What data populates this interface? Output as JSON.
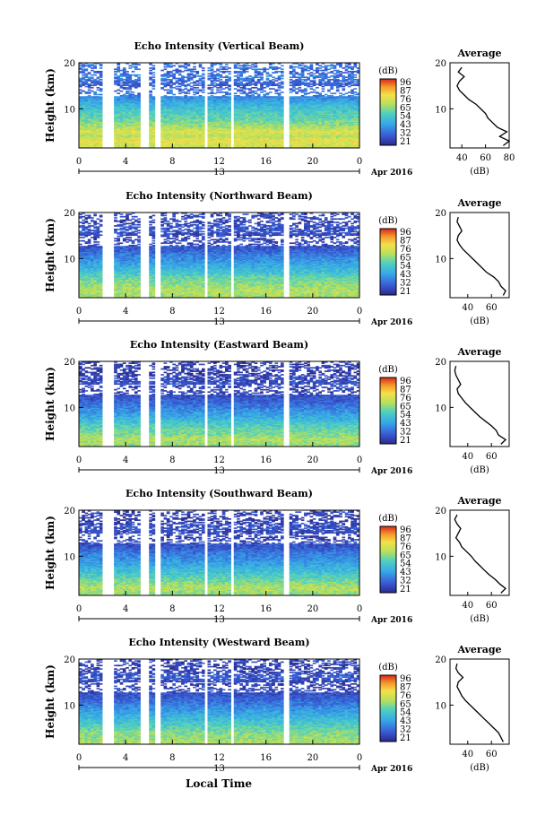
{
  "figure": {
    "xlabel": "Local Time",
    "date_label": "Apr 2016",
    "day_marker": "13",
    "colorbar_unit": "(dB)",
    "colorbar_ticks": [
      "96",
      "87",
      "76",
      "65",
      "54",
      "43",
      "32",
      "21"
    ],
    "avg_title": "Average",
    "avg_xlabel": "(dB)"
  },
  "chart_data": [
    {
      "type": "heatmap",
      "title": "Echo Intensity (Vertical Beam)",
      "ylabel": "Height (km)",
      "x_ticks": [
        "0",
        "4",
        "8",
        "12",
        "16",
        "20",
        "0"
      ],
      "y_ticks": [
        "10",
        "20"
      ],
      "xlim": [
        0,
        24
      ],
      "ylim": [
        1.5,
        20
      ],
      "colorbar_range_db": [
        21,
        96
      ],
      "data_gaps_hours": [
        [
          2.0,
          3.0
        ],
        [
          5.3,
          5.9
        ],
        [
          6.4,
          6.9
        ],
        [
          10.8,
          11.1
        ],
        [
          13.0,
          13.3
        ],
        [
          16.4,
          16.6
        ],
        [
          17.4,
          17.9
        ]
      ],
      "profile": {
        "xlabel": "(dB)",
        "x_ticks": [
          "40",
          "60",
          "80"
        ],
        "xlim": [
          30,
          80
        ],
        "y_ticks": [
          "10",
          "20"
        ],
        "ylim": [
          1.5,
          20
        ],
        "heights_km": [
          2,
          3,
          4,
          5,
          6,
          7,
          8,
          9,
          10,
          11,
          12,
          13,
          14,
          15,
          16,
          17,
          18,
          19
        ],
        "values_db": [
          75,
          80,
          72,
          78,
          70,
          66,
          62,
          60,
          56,
          52,
          46,
          42,
          38,
          36,
          38,
          42,
          37,
          40
        ]
      }
    },
    {
      "type": "heatmap",
      "title": "Echo Intensity (Northward Beam)",
      "ylabel": "Height (km)",
      "x_ticks": [
        "0",
        "4",
        "8",
        "12",
        "16",
        "20",
        "0"
      ],
      "y_ticks": [
        "10",
        "20"
      ],
      "xlim": [
        0,
        24
      ],
      "ylim": [
        1.5,
        20
      ],
      "colorbar_range_db": [
        21,
        96
      ],
      "data_gaps_hours": [
        [
          2.0,
          3.0
        ],
        [
          5.3,
          5.9
        ],
        [
          6.4,
          6.9
        ],
        [
          10.8,
          11.1
        ],
        [
          13.0,
          13.3
        ],
        [
          16.4,
          16.6
        ],
        [
          17.4,
          17.9
        ]
      ],
      "profile": {
        "xlabel": "(dB)",
        "x_ticks": [
          "40",
          "60"
        ],
        "xlim": [
          25,
          75
        ],
        "y_ticks": [
          "10",
          "20"
        ],
        "ylim": [
          1.5,
          20
        ],
        "heights_km": [
          2,
          3,
          4,
          5,
          6,
          7,
          8,
          9,
          10,
          11,
          12,
          13,
          14,
          15,
          16,
          17,
          18,
          19
        ],
        "values_db": [
          70,
          72,
          68,
          66,
          62,
          56,
          52,
          48,
          44,
          40,
          36,
          33,
          31,
          32,
          35,
          33,
          31,
          32
        ]
      }
    },
    {
      "type": "heatmap",
      "title": "Echo Intensity (Eastward Beam)",
      "ylabel": "Height (km)",
      "x_ticks": [
        "0",
        "4",
        "8",
        "12",
        "16",
        "20",
        "0"
      ],
      "y_ticks": [
        "10",
        "20"
      ],
      "xlim": [
        0,
        24
      ],
      "ylim": [
        1.5,
        20
      ],
      "colorbar_range_db": [
        21,
        96
      ],
      "data_gaps_hours": [
        [
          2.0,
          3.0
        ],
        [
          5.3,
          5.9
        ],
        [
          6.4,
          6.9
        ],
        [
          10.8,
          11.1
        ],
        [
          13.0,
          13.3
        ],
        [
          16.4,
          16.6
        ],
        [
          17.4,
          17.9
        ]
      ],
      "profile": {
        "xlabel": "(dB)",
        "x_ticks": [
          "40",
          "60"
        ],
        "xlim": [
          25,
          75
        ],
        "y_ticks": [
          "10",
          "20"
        ],
        "ylim": [
          1.5,
          20
        ],
        "heights_km": [
          2,
          3,
          4,
          5,
          6,
          7,
          8,
          9,
          10,
          11,
          12,
          13,
          14,
          15,
          16,
          17,
          18,
          19
        ],
        "values_db": [
          68,
          72,
          66,
          64,
          60,
          55,
          50,
          46,
          42,
          38,
          35,
          32,
          31,
          34,
          32,
          30,
          29,
          30
        ]
      }
    },
    {
      "type": "heatmap",
      "title": "Echo Intensity (Southward Beam)",
      "ylabel": "Height (km)",
      "x_ticks": [
        "0",
        "4",
        "8",
        "12",
        "16",
        "20",
        "0"
      ],
      "y_ticks": [
        "10",
        "20"
      ],
      "xlim": [
        0,
        24
      ],
      "ylim": [
        1.5,
        20
      ],
      "colorbar_range_db": [
        21,
        96
      ],
      "data_gaps_hours": [
        [
          2.0,
          3.0
        ],
        [
          5.3,
          5.9
        ],
        [
          6.4,
          6.9
        ],
        [
          10.8,
          11.1
        ],
        [
          13.0,
          13.3
        ],
        [
          16.4,
          16.6
        ],
        [
          17.4,
          17.9
        ]
      ],
      "profile": {
        "xlabel": "(dB)",
        "x_ticks": [
          "40",
          "60"
        ],
        "xlim": [
          25,
          75
        ],
        "y_ticks": [
          "10",
          "20"
        ],
        "ylim": [
          1.5,
          20
        ],
        "heights_km": [
          2,
          3,
          4,
          5,
          6,
          7,
          8,
          9,
          10,
          11,
          12,
          13,
          14,
          15,
          16,
          17,
          18,
          19
        ],
        "values_db": [
          68,
          72,
          67,
          63,
          58,
          54,
          50,
          46,
          43,
          39,
          35,
          33,
          30,
          32,
          34,
          31,
          29,
          31
        ]
      }
    },
    {
      "type": "heatmap",
      "title": "Echo Intensity (Westward Beam)",
      "ylabel": "Height (km)",
      "x_ticks": [
        "0",
        "4",
        "8",
        "12",
        "16",
        "20",
        "0"
      ],
      "y_ticks": [
        "10",
        "20"
      ],
      "xlim": [
        0,
        24
      ],
      "ylim": [
        1.5,
        20
      ],
      "colorbar_range_db": [
        21,
        96
      ],
      "data_gaps_hours": [
        [
          2.0,
          3.0
        ],
        [
          5.3,
          5.9
        ],
        [
          6.4,
          6.9
        ],
        [
          10.8,
          11.1
        ],
        [
          13.0,
          13.3
        ],
        [
          16.4,
          16.6
        ],
        [
          17.4,
          17.9
        ]
      ],
      "profile": {
        "xlabel": "(dB)",
        "x_ticks": [
          "40",
          "60"
        ],
        "xlim": [
          25,
          75
        ],
        "y_ticks": [
          "10",
          "20"
        ],
        "ylim": [
          1.5,
          20
        ],
        "heights_km": [
          2,
          3,
          4,
          5,
          6,
          7,
          8,
          9,
          10,
          11,
          12,
          13,
          14,
          15,
          16,
          17,
          18,
          19
        ],
        "values_db": [
          70,
          68,
          66,
          62,
          58,
          54,
          50,
          46,
          42,
          38,
          35,
          33,
          31,
          32,
          36,
          32,
          30,
          31
        ]
      }
    }
  ]
}
